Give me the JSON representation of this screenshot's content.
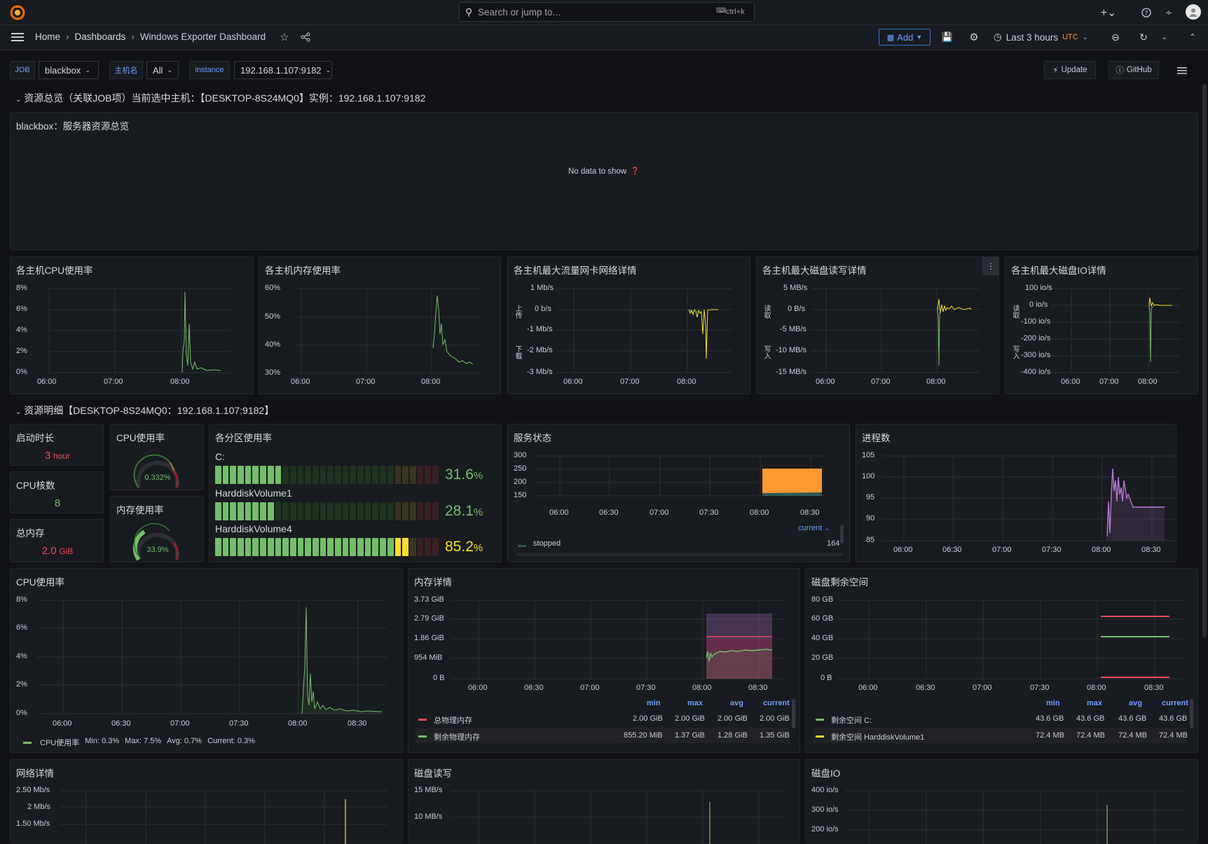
{
  "topbar": {
    "search_placeholder": "Search or jump to...",
    "search_shortcut": "ctrl+k"
  },
  "nav": {
    "breadcrumb": [
      "Home",
      "Dashboards",
      "Windows Exporter Dashboard"
    ],
    "add_label": "Add",
    "time_range": "Last 3 hours",
    "timezone": "UTC"
  },
  "variables": {
    "job_label": "JOB",
    "job_value": "blackbox",
    "host_label": "主机名",
    "host_value": "All",
    "instance_label": "instance",
    "instance_value": "192.168.1.107:9182",
    "update_label": "Update",
    "github_label": "GitHub"
  },
  "rows": {
    "overview": "资源总览（关联JOB项）当前选中主机：【DESKTOP-8S24MQ0】实例：192.168.1.107:9182",
    "detail": "资源明细【DESKTOP-8S24MQ0：192.168.1.107:9182】"
  },
  "overview_panel": {
    "title": "blackbox：服务器资源总览",
    "empty": "No data to show"
  },
  "panels": {
    "cpu_all": "各主机CPU使用率",
    "mem_all": "各主机内存使用率",
    "net_all": "各主机最大流量网卡网络详情",
    "disk_rw_all": "各主机最大磁盘读写详情",
    "disk_io_all": "各主机最大磁盘IO详情",
    "uptime": "启动时长",
    "cpu_cores": "CPU核数",
    "total_mem": "总内存",
    "cpu_usage_gauge": "CPU使用率",
    "mem_usage_gauge": "内存使用率",
    "partition_usage": "各分区使用率",
    "service_status": "服务状态",
    "process_count": "进程数",
    "cpu_usage": "CPU使用率",
    "mem_detail": "内存详情",
    "disk_free": "磁盘剩余空间",
    "net_detail": "网络详情",
    "disk_rw": "磁盘读写",
    "disk_io": "磁盘IO"
  },
  "stats": {
    "uptime_value": "3",
    "uptime_unit": "hour",
    "cpu_cores_value": "8",
    "total_mem_value": "2.0",
    "total_mem_unit": "GiB",
    "cpu_gauge_value": "0.332%",
    "mem_gauge_value": "33.9%"
  },
  "partitions": [
    {
      "name": "C:",
      "value": "31.6",
      "unit": "%",
      "fraction": 0.316,
      "color": "#73bf69"
    },
    {
      "name": "HarddiskVolume1",
      "value": "28.1",
      "unit": "%",
      "fraction": 0.281,
      "color": "#73bf69"
    },
    {
      "name": "HarddiskVolume4",
      "value": "85.2",
      "unit": "%",
      "fraction": 0.852,
      "color": "#fade2a"
    }
  ],
  "axes": {
    "time3": [
      "06:00",
      "07:00",
      "08:00"
    ],
    "time6": [
      "06:00",
      "06:30",
      "07:00",
      "07:30",
      "08:00",
      "08:30"
    ],
    "cpu_all_y": [
      "8%",
      "6%",
      "4%",
      "2%",
      "0%"
    ],
    "mem_all_y": [
      "60%",
      "50%",
      "40%",
      "30%"
    ],
    "net_all_y": [
      "1 Mb/s",
      "0 b/s",
      "-1 Mb/s",
      "-2 Mb/s",
      "-3 Mb/s"
    ],
    "net_all_side": [
      "上传",
      "下载"
    ],
    "disk_all_y": [
      "5 MB/s",
      "0 B/s",
      "-5 MB/s",
      "-10 MB/s",
      "-15 MB/s"
    ],
    "disk_all_side": [
      "读取",
      "写入"
    ],
    "io_all_y": [
      "100 io/s",
      "0 io/s",
      "-100 io/s",
      "-200 io/s",
      "-300 io/s",
      "-400 io/s"
    ],
    "io_all_side": [
      "读取",
      "写入"
    ],
    "service_y": [
      "300",
      "250",
      "200",
      "150"
    ],
    "process_y": [
      "105",
      "100",
      "95",
      "90",
      "85"
    ],
    "cpu_y": [
      "8%",
      "6%",
      "4%",
      "2%",
      "0%"
    ],
    "mem_y": [
      "3.73 GiB",
      "2.79 GiB",
      "1.86 GiB",
      "954 MiB",
      "0 B"
    ],
    "disk_free_y": [
      "80 GB",
      "60 GB",
      "40 GB",
      "20 GB",
      "0 B"
    ],
    "net_y": [
      "2.50 Mb/s",
      "2 Mb/s",
      "1.50 Mb/s"
    ],
    "disk_rw_y": [
      "15 MB/s",
      "10 MB/s"
    ],
    "disk_io_y": [
      "400 io/s",
      "300 io/s",
      "200 io/s"
    ]
  },
  "service_legend": {
    "sort_label": "current",
    "name": "stopped",
    "value": "164"
  },
  "cpu_legend": {
    "name": "CPU使用率",
    "min": "Min: 0.3%",
    "max": "Max: 7.5%",
    "avg": "Avg: 0.7%",
    "current": "Current: 0.3%"
  },
  "table_headers": [
    "min",
    "max",
    "avg",
    "current"
  ],
  "mem_legend": [
    {
      "name": "总物理内存",
      "color": "#f2495c",
      "min": "2.00 GiB",
      "max": "2.00 GiB",
      "avg": "2.00 GiB",
      "current": "2.00 GiB"
    },
    {
      "name": "剩余物理内存",
      "color": "#73bf69",
      "min": "855.20 MiB",
      "max": "1.37 GiB",
      "avg": "1.28 GiB",
      "current": "1.35 GiB"
    }
  ],
  "disk_legend": [
    {
      "name": "剩余空间 C:",
      "color": "#73bf69",
      "min": "43.6 GB",
      "max": "43.6 GB",
      "avg": "43.6 GB",
      "current": "43.6 GB"
    },
    {
      "name": "剩余空间 HarddiskVolume1",
      "color": "#fade2a",
      "min": "72.4 MB",
      "max": "72.4 MB",
      "avg": "72.4 MB",
      "current": "72.4 MB"
    }
  ],
  "colors": {
    "green": "#73bf69",
    "yellow": "#fade2a",
    "orange": "#ff9830",
    "red": "#f2495c",
    "purple": "#b877d9",
    "blue": "#6e9fff"
  }
}
